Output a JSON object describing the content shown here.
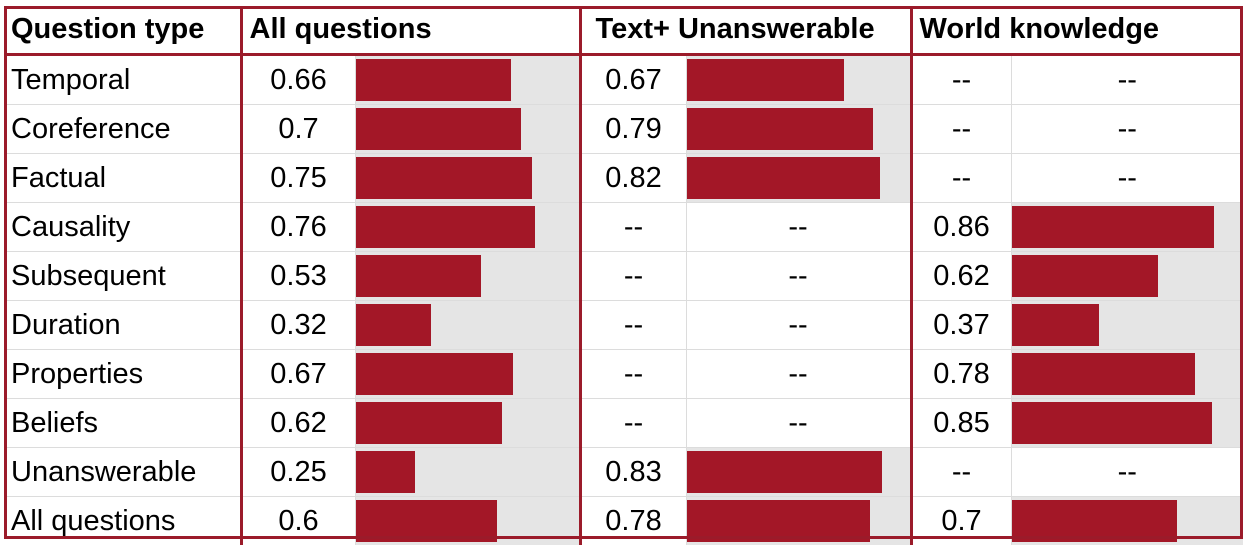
{
  "chart_data": {
    "type": "table",
    "headers": [
      "Question type",
      "All questions",
      "Text+ Unanswerable",
      "World knowledge"
    ],
    "scale_max": 1.0,
    "bar_color": "#a31727",
    "track_color": "#e5e5e5",
    "border_color": "#9b1b2a",
    "empty_marker": "--",
    "rows": [
      {
        "label": "Temporal",
        "values": [
          0.66,
          0.67,
          null
        ]
      },
      {
        "label": "Coreference",
        "values": [
          0.7,
          0.79,
          null
        ]
      },
      {
        "label": "Factual",
        "values": [
          0.75,
          0.82,
          null
        ]
      },
      {
        "label": "Causality",
        "values": [
          0.76,
          null,
          0.86
        ]
      },
      {
        "label": "Subsequent",
        "values": [
          0.53,
          null,
          0.62
        ]
      },
      {
        "label": "Duration",
        "values": [
          0.32,
          null,
          0.37
        ]
      },
      {
        "label": "Properties",
        "values": [
          0.67,
          null,
          0.78
        ]
      },
      {
        "label": "Beliefs",
        "values": [
          0.62,
          null,
          0.85
        ]
      },
      {
        "label": "Unanswerable",
        "values": [
          0.25,
          0.83,
          null
        ]
      },
      {
        "label": "All questions",
        "values": [
          0.6,
          0.78,
          0.7
        ]
      }
    ]
  }
}
